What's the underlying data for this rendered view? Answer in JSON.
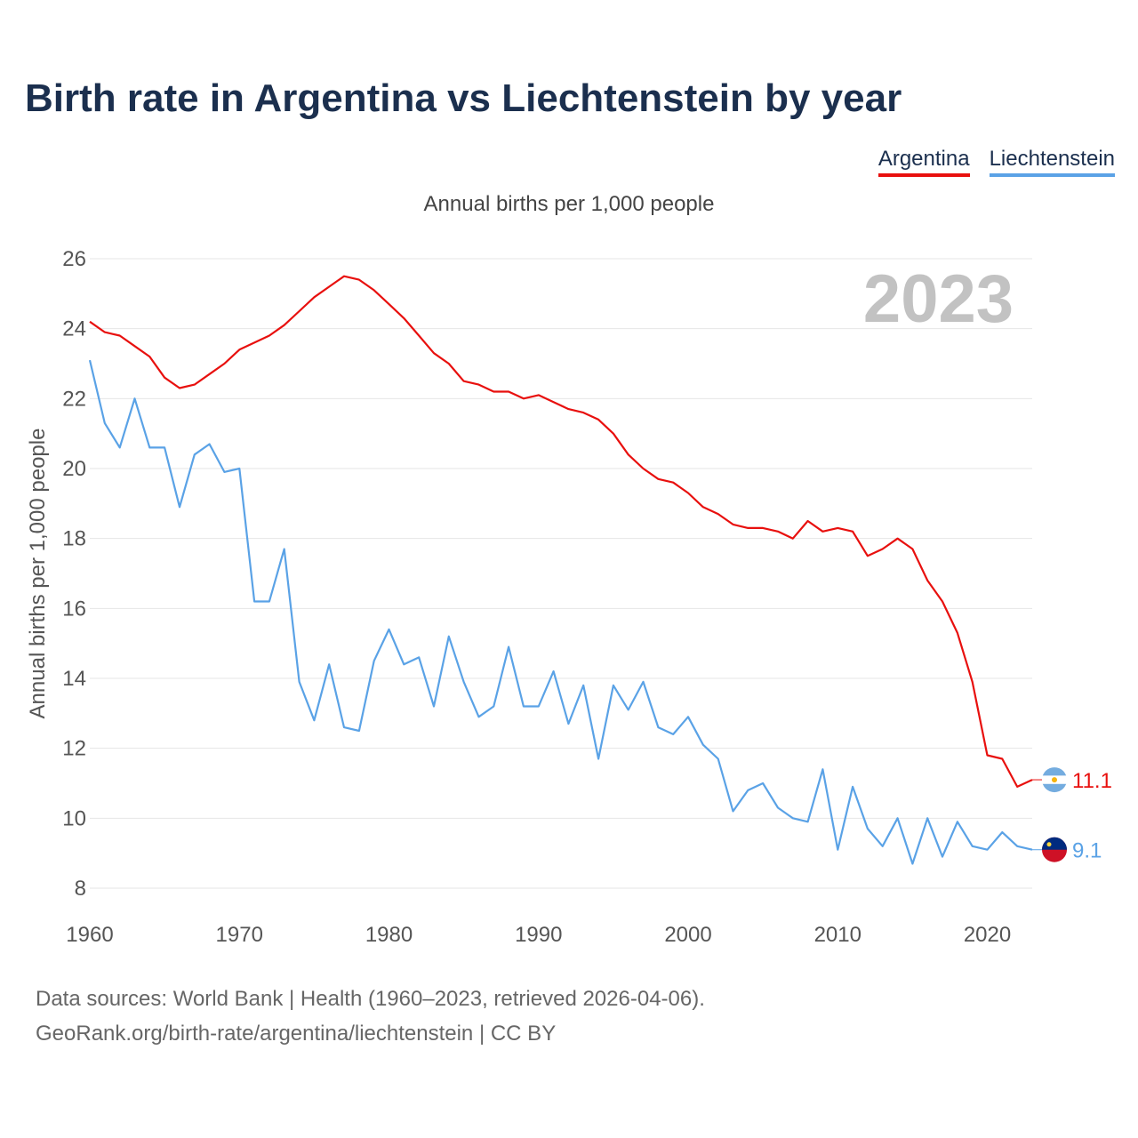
{
  "title": "Birth rate in Argentina vs Liechtenstein by year",
  "legend": {
    "argentina": "Argentina",
    "liechtenstein": "Liechtenstein"
  },
  "subtitle": "Annual births per 1,000 people",
  "year_watermark": "2023",
  "footer": {
    "line1": "Data sources: World Bank | Health (1960–2023, retrieved 2026-04-06).",
    "line2": "GeoRank.org/birth-rate/argentina/liechtenstein | CC BY"
  },
  "colors": {
    "argentina": "#e8100e",
    "liechtenstein": "#5aa2e6",
    "title": "#1b2f4e"
  },
  "chart_data": {
    "type": "line",
    "title": "Birth rate in Argentina vs Liechtenstein by year",
    "xlabel": "",
    "ylabel": "Annual births per 1,000 people",
    "xlim": [
      1960,
      2023
    ],
    "ylim": [
      8,
      26
    ],
    "x_ticks": [
      1960,
      1970,
      1980,
      1990,
      2000,
      2010,
      2020
    ],
    "y_ticks": [
      8,
      10,
      12,
      14,
      16,
      18,
      20,
      22,
      24,
      26
    ],
    "x": [
      1960,
      1961,
      1962,
      1963,
      1964,
      1965,
      1966,
      1967,
      1968,
      1969,
      1970,
      1971,
      1972,
      1973,
      1974,
      1975,
      1976,
      1977,
      1978,
      1979,
      1980,
      1981,
      1982,
      1983,
      1984,
      1985,
      1986,
      1987,
      1988,
      1989,
      1990,
      1991,
      1992,
      1993,
      1994,
      1995,
      1996,
      1997,
      1998,
      1999,
      2000,
      2001,
      2002,
      2003,
      2004,
      2005,
      2006,
      2007,
      2008,
      2009,
      2010,
      2011,
      2012,
      2013,
      2014,
      2015,
      2016,
      2017,
      2018,
      2019,
      2020,
      2021,
      2022,
      2023
    ],
    "series": [
      {
        "name": "Argentina",
        "end_label": "11.1",
        "values": [
          24.2,
          23.9,
          23.8,
          23.5,
          23.2,
          22.6,
          22.3,
          22.4,
          22.7,
          23.0,
          23.4,
          23.6,
          23.8,
          24.1,
          24.5,
          24.9,
          25.2,
          25.5,
          25.4,
          25.1,
          24.7,
          24.3,
          23.8,
          23.3,
          23.0,
          22.5,
          22.4,
          22.2,
          22.2,
          22.0,
          22.1,
          21.9,
          21.7,
          21.6,
          21.4,
          21.0,
          20.4,
          20.0,
          19.7,
          19.6,
          19.3,
          18.9,
          18.7,
          18.4,
          18.3,
          18.3,
          18.2,
          18.0,
          18.5,
          18.2,
          18.3,
          18.2,
          17.5,
          17.7,
          18.0,
          17.7,
          16.8,
          16.2,
          15.3,
          13.9,
          11.8,
          11.7,
          10.9,
          11.1
        ]
      },
      {
        "name": "Liechtenstein",
        "end_label": "9.1",
        "values": [
          23.1,
          21.3,
          20.6,
          22.0,
          20.6,
          20.6,
          18.9,
          20.4,
          20.7,
          19.9,
          20.0,
          16.2,
          16.2,
          17.7,
          13.9,
          12.8,
          14.4,
          12.6,
          12.5,
          14.5,
          15.4,
          14.4,
          14.6,
          13.2,
          15.2,
          13.9,
          12.9,
          13.2,
          14.9,
          13.2,
          13.2,
          14.2,
          12.7,
          13.8,
          11.7,
          13.8,
          13.1,
          13.9,
          12.6,
          12.4,
          12.9,
          12.1,
          11.7,
          10.2,
          10.8,
          11.0,
          10.3,
          10.0,
          9.9,
          11.4,
          9.1,
          10.9,
          9.7,
          9.2,
          10.0,
          8.7,
          10.0,
          8.9,
          9.9,
          9.2,
          9.1,
          9.6,
          9.2,
          9.1
        ]
      }
    ]
  }
}
